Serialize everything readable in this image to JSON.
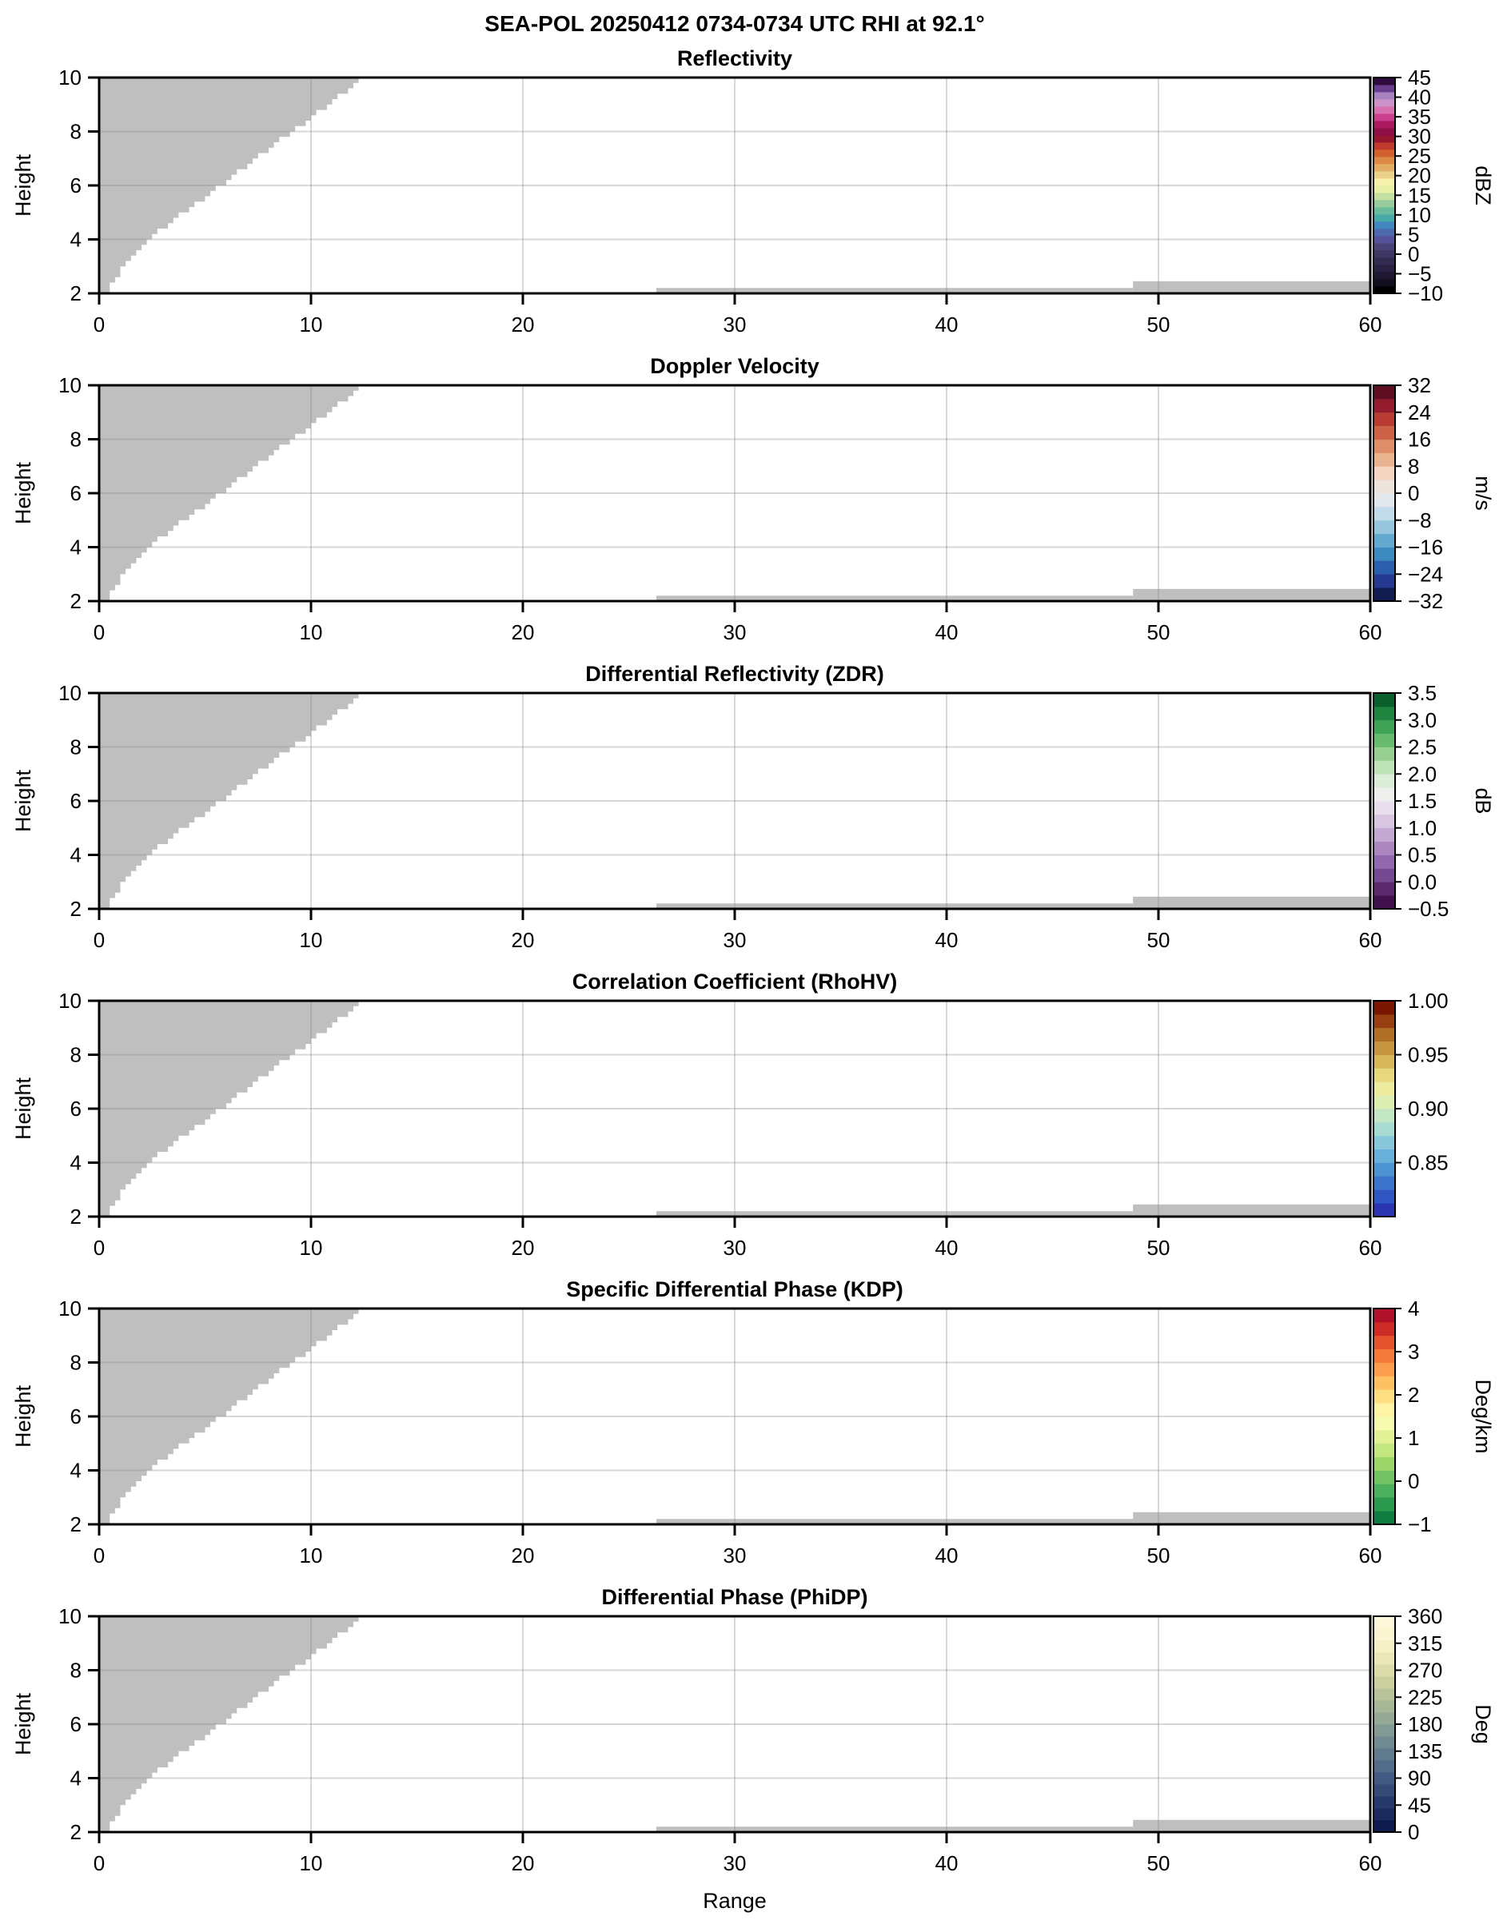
{
  "chart_data": {
    "type": "heatmap",
    "title": "SEA-POL 20250412 0734-0734 UTC RHI at 92.1°",
    "xlabel": "Range",
    "ylabel": "Height",
    "xlim": [
      0,
      60
    ],
    "ylim": [
      2,
      10
    ],
    "x_ticks": [
      0,
      10,
      20,
      30,
      40,
      50,
      60
    ],
    "y_ticks": [
      2,
      4,
      6,
      8,
      10
    ],
    "x_gridlines": [
      10,
      20,
      30,
      40,
      50
    ],
    "y_gridlines": [
      4,
      6,
      8
    ],
    "grid": true,
    "note": "All six RHI panels show only gray masked/no-data regions: an upper-left stepped wedge and two thin strips along the bottom; no colored echo data is present.",
    "nodata_color": "#bfbfbf",
    "nodata_wedge_edge": [
      [
        2,
        0.45
      ],
      [
        2.4,
        0.7
      ],
      [
        2.8,
        1.05
      ],
      [
        3.2,
        1.45
      ],
      [
        3.6,
        1.95
      ],
      [
        4,
        2.5
      ],
      [
        5,
        4.2
      ],
      [
        6,
        5.9
      ],
      [
        7,
        7.6
      ],
      [
        8,
        9.3
      ],
      [
        9,
        11.0
      ],
      [
        10,
        12.65
      ]
    ],
    "nodata_strips": [
      {
        "x0": 26.3,
        "x1": 48.8,
        "y0": 2,
        "y1": 2.2
      },
      {
        "x0": 48.8,
        "x1": 60.0,
        "y0": 2,
        "y1": 2.45
      }
    ],
    "panels": [
      {
        "title": "Reflectivity",
        "cbar_label": "dBZ",
        "cbar_min": -10,
        "cbar_max": 45,
        "cbar_tick_values": [
          45,
          40,
          35,
          30,
          25,
          20,
          15,
          10,
          5,
          0,
          -5,
          -10
        ],
        "cbar_tick_labels": [
          "45",
          "40",
          "35",
          "30",
          "25",
          "20",
          "15",
          "10",
          "5",
          "0",
          "−5",
          "−10"
        ],
        "cbar_colors_bottom_to_top": [
          "#000000",
          "#120e1e",
          "#1d1830",
          "#282141",
          "#332b52",
          "#3e3663",
          "#4a4378",
          "#55519b",
          "#4d69ad",
          "#4286c0",
          "#47a9a5",
          "#6bba9b",
          "#96cc9b",
          "#c3dfa1",
          "#e9f0a8",
          "#f6f2ae",
          "#ead28a",
          "#e3ad64",
          "#dd8a46",
          "#d2602f",
          "#bf392d",
          "#971731",
          "#8e0f46",
          "#ad1a5f",
          "#cc3f8e",
          "#d772ae",
          "#cd92c9",
          "#a982c1",
          "#6b3d8f",
          "#2f0a3d"
        ]
      },
      {
        "title": "Doppler Velocity",
        "cbar_label": "m/s",
        "cbar_min": -32,
        "cbar_max": 32,
        "cbar_tick_values": [
          32,
          24,
          16,
          8,
          0,
          -8,
          -16,
          -24,
          -32
        ],
        "cbar_tick_labels": [
          "32",
          "24",
          "16",
          "8",
          "0",
          "−8",
          "−16",
          "−24",
          "−32"
        ],
        "cbar_colors_bottom_to_top": [
          "#131c4e",
          "#23388e",
          "#2b5fae",
          "#3c8abf",
          "#64a9cf",
          "#95c6dd",
          "#c3dceb",
          "#e3e8ec",
          "#ede4de",
          "#f4d3c0",
          "#eab38f",
          "#dd8d67",
          "#cc6248",
          "#b83c32",
          "#951c2c",
          "#5f0d20"
        ]
      },
      {
        "title": "Differential Reflectivity (ZDR)",
        "cbar_label": "dB",
        "cbar_min": -0.5,
        "cbar_max": 3.5,
        "cbar_tick_values": [
          3.5,
          3.0,
          2.5,
          2.0,
          1.5,
          1.0,
          0.5,
          0.0,
          -0.5
        ],
        "cbar_tick_labels": [
          "3.5",
          "3.0",
          "2.5",
          "2.0",
          "1.5",
          "1.0",
          "0.5",
          "0.0",
          "−0.5"
        ],
        "cbar_colors_bottom_to_top": [
          "#40114c",
          "#5c2a6d",
          "#764a92",
          "#9268ae",
          "#ab87c0",
          "#c3a8d1",
          "#d8c6e0",
          "#eadfed",
          "#eff0ee",
          "#dcedd8",
          "#bee3b6",
          "#98d091",
          "#68bb6e",
          "#3fa456",
          "#1f8540",
          "#0a5f2d"
        ]
      },
      {
        "title": "Correlation Coefficient (RhoHV)",
        "cbar_label": "",
        "cbar_min": 0.8,
        "cbar_max": 1.0,
        "cbar_tick_values": [
          1.0,
          0.95,
          0.9,
          0.85
        ],
        "cbar_tick_labels": [
          "1.00",
          "0.95",
          "0.90",
          "0.85"
        ],
        "cbar_colors_bottom_to_top": [
          "#2b35b2",
          "#2f55c2",
          "#3a74cb",
          "#4b93d2",
          "#66b0d9",
          "#88c8da",
          "#a8dcd3",
          "#c4e8c4",
          "#ddeeb2",
          "#edec9f",
          "#e7d87e",
          "#d9b85c",
          "#c6953f",
          "#b06f27",
          "#973f12",
          "#7a1600"
        ]
      },
      {
        "title": "Specific Differential Phase (KDP)",
        "cbar_label": "Deg/km",
        "cbar_min": -1,
        "cbar_max": 4,
        "cbar_tick_values": [
          4,
          3,
          2,
          1,
          0,
          -1
        ],
        "cbar_tick_labels": [
          "4",
          "3",
          "2",
          "1",
          "0",
          "−1"
        ],
        "cbar_colors_bottom_to_top": [
          "#117c41",
          "#2b9a4e",
          "#4cb05f",
          "#73c264",
          "#9cd669",
          "#c3e67f",
          "#e2f195",
          "#f6fbaf",
          "#fff3a6",
          "#fede81",
          "#fdc161",
          "#fb9d4c",
          "#f37a3b",
          "#e5532e",
          "#cc2a25",
          "#b0122b"
        ]
      },
      {
        "title": "Differential Phase (PhiDP)",
        "cbar_label": "Deg",
        "cbar_min": 0,
        "cbar_max": 360,
        "cbar_tick_values": [
          360,
          315,
          270,
          225,
          180,
          135,
          90,
          45,
          0
        ],
        "cbar_tick_labels": [
          "360",
          "315",
          "270",
          "225",
          "180",
          "135",
          "90",
          "45",
          "0"
        ],
        "cbar_colors_bottom_to_top": [
          "#0f1b4d",
          "#1a2a5d",
          "#27396b",
          "#344a77",
          "#425a81",
          "#516b89",
          "#617b8e",
          "#718a91",
          "#829a93",
          "#94a895",
          "#a6b697",
          "#b9c39a",
          "#ccd0a0",
          "#dddcab",
          "#ebe7b9",
          "#f5efc6",
          "#fbf5d2",
          "#fdf8da"
        ]
      }
    ]
  }
}
